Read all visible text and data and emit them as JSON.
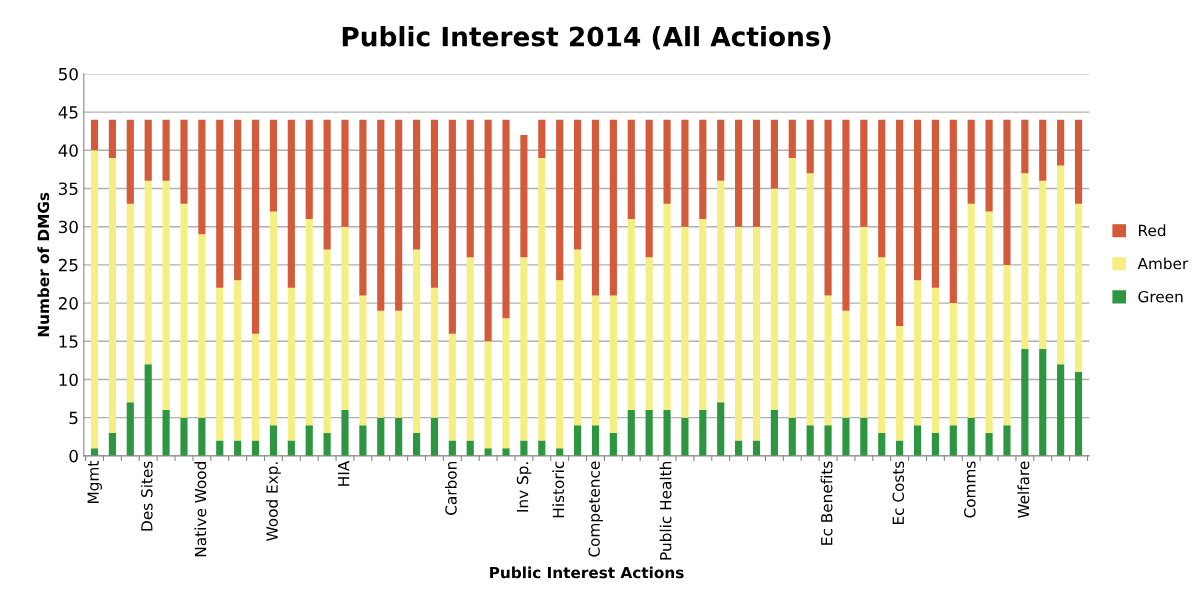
{
  "chart_data": {
    "type": "bar",
    "stacked": true,
    "title": "Public Interest 2014 (All Actions)",
    "xlabel": "Public Interest Actions",
    "ylabel": "Number of DMGs",
    "categories": [
      "Mgmt",
      null,
      null,
      "Des Sites",
      null,
      null,
      "Native Wood",
      null,
      null,
      null,
      "Wood Exp.",
      null,
      null,
      null,
      "HIA",
      null,
      null,
      null,
      null,
      null,
      "Carbon",
      null,
      null,
      null,
      "Inv Sp.",
      null,
      "Historic",
      null,
      "Competence",
      null,
      null,
      null,
      "Public Health",
      null,
      null,
      null,
      null,
      null,
      null,
      null,
      null,
      "Ec Benefits",
      null,
      null,
      null,
      "Ec Costs",
      null,
      null,
      null,
      "Comms",
      null,
      null,
      "Welfare",
      null,
      null,
      null
    ],
    "series": [
      {
        "name": "Green",
        "color": "#2e9640",
        "values": [
          1,
          3,
          7,
          12,
          6,
          5,
          5,
          2,
          2,
          2,
          4,
          2,
          4,
          3,
          6,
          4,
          5,
          5,
          3,
          5,
          2,
          2,
          1,
          1,
          2,
          2,
          1,
          4,
          4,
          3,
          6,
          6,
          6,
          5,
          6,
          7,
          2,
          2,
          6,
          5,
          4,
          4,
          5,
          5,
          3,
          2,
          4,
          3,
          4,
          5,
          3,
          4,
          14,
          14,
          12,
          11
        ]
      },
      {
        "name": "Amber",
        "color": "#f5ee82",
        "values": [
          39,
          36,
          26,
          24,
          30,
          28,
          24,
          20,
          21,
          14,
          28,
          20,
          27,
          24,
          24,
          17,
          14,
          14,
          24,
          17,
          14,
          24,
          14,
          17,
          24,
          37,
          22,
          23,
          17,
          18,
          25,
          20,
          27,
          25,
          25,
          29,
          28,
          28,
          29,
          34,
          33,
          17,
          14,
          25,
          23,
          15,
          19,
          19,
          16,
          28,
          29,
          21,
          23,
          22,
          26,
          22
        ]
      },
      {
        "name": "Red",
        "color": "#d35a3a",
        "values": [
          4,
          5,
          11,
          8,
          8,
          11,
          15,
          22,
          21,
          28,
          12,
          22,
          13,
          17,
          14,
          23,
          25,
          25,
          17,
          22,
          28,
          18,
          29,
          26,
          16,
          5,
          21,
          17,
          23,
          23,
          13,
          18,
          11,
          14,
          13,
          8,
          14,
          14,
          9,
          5,
          7,
          23,
          25,
          14,
          18,
          27,
          21,
          22,
          24,
          11,
          12,
          19,
          7,
          8,
          6,
          11
        ]
      }
    ],
    "ylim": [
      0,
      50
    ],
    "yticks": [
      0,
      5,
      10,
      15,
      20,
      25,
      30,
      35,
      40,
      45,
      50
    ],
    "grid": "y",
    "legend": "right"
  }
}
